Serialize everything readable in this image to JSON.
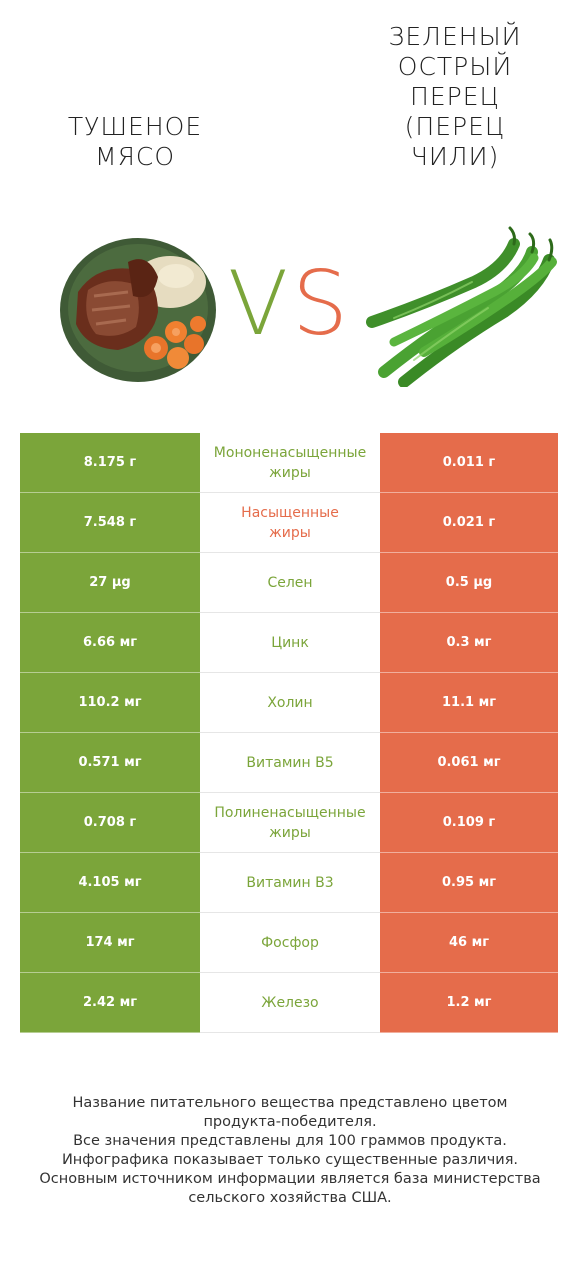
{
  "left_title": [
    "ТУШЕНОЕ",
    "МЯСО"
  ],
  "right_title": [
    "ЗЕЛЕНЫЙ",
    "ОСТРЫЙ",
    "ПЕРЕЦ",
    "(ПЕРЕЦ",
    "ЧИЛИ)"
  ],
  "vs": {
    "v": "V",
    "s": "S",
    "v_color": "#7ba53a",
    "s_color": "#e56c4b"
  },
  "colors": {
    "green": "#7ba53a",
    "red": "#e56c4b"
  },
  "rows": [
    {
      "left": "8.175 г",
      "label": [
        "Мононенасыщенные",
        "жиры"
      ],
      "right": "0.011 г",
      "winner": "green"
    },
    {
      "left": "7.548 г",
      "label": [
        "Насыщенные",
        "жиры"
      ],
      "right": "0.021 г",
      "winner": "red"
    },
    {
      "left": "27 µg",
      "label": [
        "Селен"
      ],
      "right": "0.5 µg",
      "winner": "green"
    },
    {
      "left": "6.66 мг",
      "label": [
        "Цинк"
      ],
      "right": "0.3 мг",
      "winner": "green"
    },
    {
      "left": "110.2 мг",
      "label": [
        "Холин"
      ],
      "right": "11.1 мг",
      "winner": "green"
    },
    {
      "left": "0.571 мг",
      "label": [
        "Витамин B5"
      ],
      "right": "0.061 мг",
      "winner": "green"
    },
    {
      "left": "0.708 г",
      "label": [
        "Полиненасыщенные",
        "жиры"
      ],
      "right": "0.109 г",
      "winner": "green"
    },
    {
      "left": "4.105 мг",
      "label": [
        "Витамин B3"
      ],
      "right": "0.95 мг",
      "winner": "green"
    },
    {
      "left": "174 мг",
      "label": [
        "Фосфор"
      ],
      "right": "46 мг",
      "winner": "green"
    },
    {
      "left": "2.42 мг",
      "label": [
        "Железо"
      ],
      "right": "1.2 мг",
      "winner": "green"
    }
  ],
  "footer": [
    "Название питательного вещества представлено цветом",
    "продукта-победителя.",
    "Все значения представлены для 100 граммов продукта.",
    "Инфографика показывает только существенные различия.",
    "Основным источником информации является база министерства",
    "сельского хозяйства США."
  ]
}
